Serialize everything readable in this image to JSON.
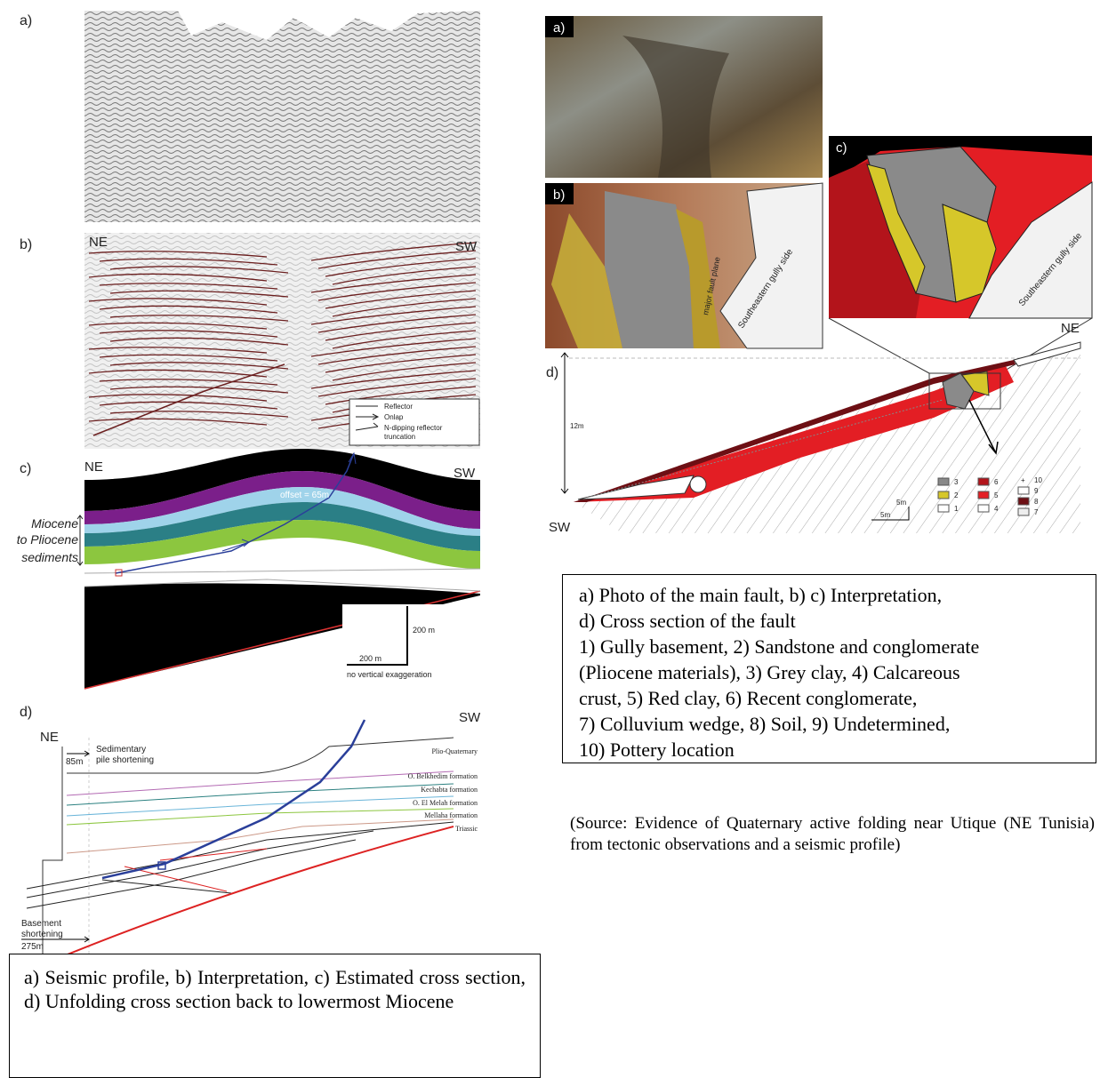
{
  "left_figure": {
    "panel_a": {
      "label": "a)"
    },
    "panel_b": {
      "label": "b)",
      "left_direction": "NE",
      "right_direction": "SW",
      "legend": [
        "Reflector",
        "Onlap",
        "N-dipping reflector",
        "truncation"
      ]
    },
    "panel_c": {
      "label": "c)",
      "left_direction": "NE",
      "right_direction": "SW",
      "offset": "offset = 65m",
      "sediments_label": [
        "Miocene",
        "to Pliocene",
        "sediments"
      ],
      "vertical_scale": "200 m",
      "horizontal_scale": "200 m",
      "scale_note": "no vertical exaggeration"
    },
    "panel_d": {
      "label": "d)",
      "left_direction": "NE",
      "right_direction": "SW",
      "sedimentary_shortening_value": "85m",
      "sedimentary_shortening_label": [
        "Sedimentary",
        "pile shortening"
      ],
      "formations": [
        "Plio-Quaternary",
        "O. Belkhedim formation",
        "Kechabta formation",
        "O. El Melah formation",
        "Mellaha formation",
        "Triassic"
      ],
      "basement_shortening_label": [
        "Basement",
        "shortening"
      ],
      "basement_shortening_value": "275m"
    },
    "caption": "a) Seismic profile, b) Interpretation, c) Estimated cross section, d) Unfolding cross section back to lowermost Miocene"
  },
  "right_figure": {
    "panel_a": {
      "label": "a)"
    },
    "panel_b": {
      "label": "b)",
      "fault_label": "major fault plane",
      "side_label": "Southeastern gully side"
    },
    "panel_c": {
      "label": "c)",
      "side_label": "Southeastern gully side",
      "direction": "NE"
    },
    "panel_d": {
      "label": "d)",
      "height": "12m",
      "vertical_scale": "5m",
      "horizontal_scale": "5m",
      "direction": "SW",
      "legend": [
        "3",
        "2",
        "1",
        "6",
        "5",
        "4",
        "10",
        "9",
        "8",
        "7"
      ]
    },
    "caption_lines": [
      "a) Photo of the main fault, b) c) Interpretation,",
      "d) Cross section of the fault",
      "1) Gully basement, 2) Sandstone and conglomerate",
      "(Pliocene materials), 3) Grey clay, 4) Calcareous",
      "crust, 5) Red clay, 6) Recent conglomerate,",
      "7) Colluvium wedge, 8) Soil, 9) Undetermined,",
      "10) Pottery location"
    ]
  },
  "source": "(Source: Evidence of Quaternary active folding near Utique (NE Tunisia) from tectonic observations and a seismic profile)"
}
